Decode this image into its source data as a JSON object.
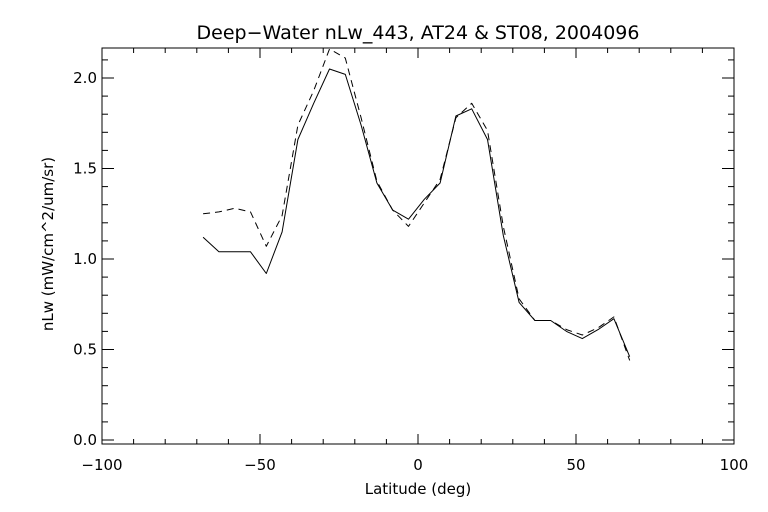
{
  "chart_data": {
    "type": "line",
    "title": "Deep−Water nLw_443, AT24 & ST08, 2004096",
    "xlabel": "Latitude (deg)",
    "ylabel": "nLw (mW/cm^2/um/sr)",
    "xlim": [
      -100,
      100
    ],
    "ylim": [
      0.0,
      2.15
    ],
    "xticks": [
      -100,
      -50,
      0,
      50,
      100
    ],
    "xtick_labels": [
      "−100",
      "−50",
      "0",
      "50",
      "100"
    ],
    "yticks": [
      0.0,
      0.5,
      1.0,
      1.5,
      2.0
    ],
    "ytick_labels": [
      "0.0",
      "0.5",
      "1.0",
      "1.5",
      "2.0"
    ],
    "grid": false,
    "series": [
      {
        "style": "solid",
        "color": "#000000",
        "x": [
          -68,
          -63,
          -58,
          -53,
          -48,
          -43,
          -38,
          -33,
          -28,
          -23,
          -18,
          -13,
          -8,
          -3,
          2,
          7,
          12,
          17,
          22,
          27,
          32,
          37,
          42,
          47,
          52,
          57,
          62,
          67
        ],
        "y": [
          1.12,
          1.04,
          1.04,
          1.04,
          0.92,
          1.15,
          1.66,
          1.86,
          2.05,
          2.02,
          1.74,
          1.42,
          1.27,
          1.22,
          1.33,
          1.42,
          1.79,
          1.83,
          1.66,
          1.13,
          0.76,
          0.66,
          0.66,
          0.6,
          0.56,
          0.61,
          0.67,
          0.46
        ]
      },
      {
        "style": "dashed",
        "color": "#000000",
        "x": [
          -68,
          -63,
          -58,
          -53,
          -48,
          -43,
          -38,
          -33,
          -28,
          -23,
          -18,
          -13,
          -8,
          -3,
          2,
          7,
          12,
          17,
          22,
          27,
          32,
          37,
          42,
          47,
          52,
          57,
          62,
          67
        ],
        "y": [
          1.25,
          1.26,
          1.28,
          1.26,
          1.07,
          1.24,
          1.74,
          1.93,
          2.16,
          2.11,
          1.78,
          1.43,
          1.27,
          1.18,
          1.31,
          1.44,
          1.78,
          1.86,
          1.71,
          1.18,
          0.78,
          0.66,
          0.66,
          0.61,
          0.58,
          0.62,
          0.68,
          0.44
        ]
      }
    ]
  }
}
